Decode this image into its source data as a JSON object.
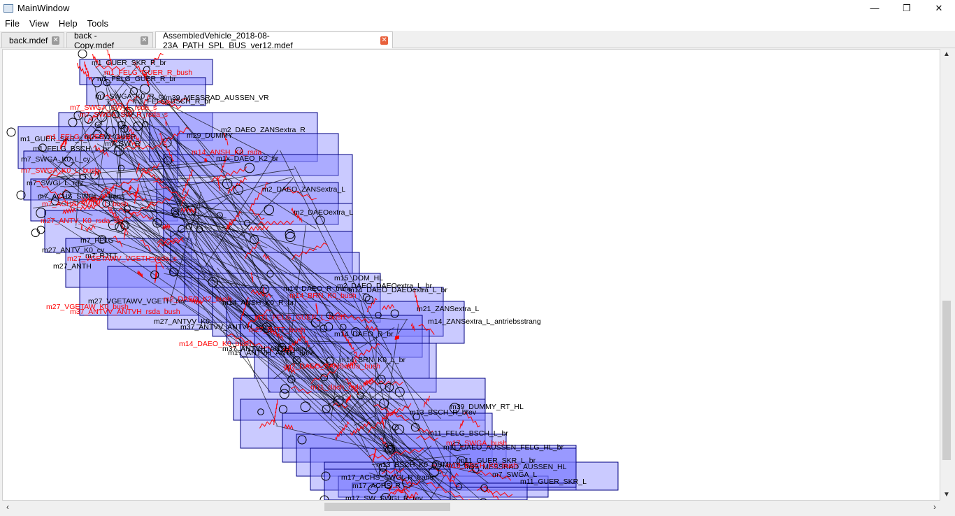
{
  "window": {
    "title": "MainWindow",
    "min_glyph": "—",
    "max_glyph": "❐",
    "close_glyph": "✕"
  },
  "menu": {
    "items": [
      "File",
      "View",
      "Help",
      "Tools"
    ]
  },
  "tabs": [
    {
      "label": "back.mdef",
      "active": false
    },
    {
      "label": "back - Copy.mdef",
      "active": false
    },
    {
      "label": "AssembledVehicle_2018-08-23A_PATH_SPL_BUS_ver12.mdef",
      "active": true
    }
  ],
  "tab_close_glyph": "✕",
  "colors": {
    "box_fill": "#8080ff",
    "box_stroke": "#000080",
    "connector_red": "#ff0000",
    "label_black": "#000000"
  },
  "scroll": {
    "up": "▲",
    "down": "▼",
    "left": "‹",
    "right": "›"
  },
  "labels_black": [
    "m1_GUER_SKR_R_br",
    "m1_FELG_GUER_R_br",
    "m7_SWGA_K0_R_cy",
    "m39_MESSRAD_AUSSEN_VR",
    "m1_FELG_BSCH_R_br",
    "m7_SWGA_SW_R",
    "m1_GUER_SKR_L_br",
    "m7_SW_GUER",
    "m1_FELG_BSCH_L_br",
    "m7_SWGA_K0_L_cy",
    "m7_SWGI_L_rev",
    "m7_ACHS_SWGI_L_trans",
    "m7_SW_R",
    "m27_ANTV_K0_cv",
    "m7_FELG",
    "m27_ANTH",
    "m7_RJTT",
    "m27_VGETAWV_VGETH_rev",
    "m27_ANTVV_K0",
    "m37_ANTVV_ANTVH_trans",
    "m37_ANTVH_ANTH_univ",
    "m29_DUMMY",
    "m2_DAEO_ZANSextra_R",
    "m2_DAEO_ZANSextra_L",
    "m2_DAEOextra_L",
    "m2_DAEO_DAEOextra_L_br",
    "m14_DAEO_DAEOextra_L_br",
    "m21_ZANSextra_L",
    "m1x_DAEO_K2_br",
    "m14_ZANSextra_L_antriebsstrang",
    "m14_ANSH_K0_R_br",
    "m14_DAEO_R_trans",
    "m15_DOM_HL",
    "m17_ANTVH_ANTH_univ",
    "m14_DAEO_R_br",
    "m14_BRN_K0_L_br",
    "m39_DUMMY_RT_HL",
    "m13_BSCH_R_brev",
    "m11_FELG_BSCH_L_br",
    "m11_DAEO_AUSSEN_FELG_HL_br",
    "m11_GUER_SKR_L_br",
    "m39_MESSRAD_AUSSEN_HL",
    "m11_GUER_SKR_L",
    "m17_ACHS_SWGI_R_trans",
    "m17_SW_SWGI_R_rev",
    "m13_BSCH_K0_DUMMY_HL",
    "m17_ACHS_R",
    "m7_SWGA_L"
  ],
  "labels_red": [
    "m1_FELG_GUER_R_bush",
    "m7_SWGA_SW_R_rsda_s",
    "m7_SWGA_SW_L_rsda_s",
    "m1_FELG_GUER_L_bush",
    "m7_SWGA_K0_L_bush",
    "m7_ACHS_SWGI_L_bush",
    "m27_ANTV_K0_rsda_s",
    "m27_VGETAWV_VGETH_rsda_s",
    "m27_VGETAW_K0_bush",
    "m37_ANTVV_ANTVH_rsda_bush",
    "m2_DAEO_K2_bush",
    "m14_DAEO_K0_bush",
    "m14_ANSH_K0_rsda",
    "m14_BRN_K0_bush",
    "m11_FELG_GUER_L_bush",
    "m11_dach_rsda",
    "m13_BSCH_K0_bush",
    "m17_SWGA_bush",
    "m2_DAEO_ZANSextra_bush",
    "m27_RJTT_bush"
  ]
}
